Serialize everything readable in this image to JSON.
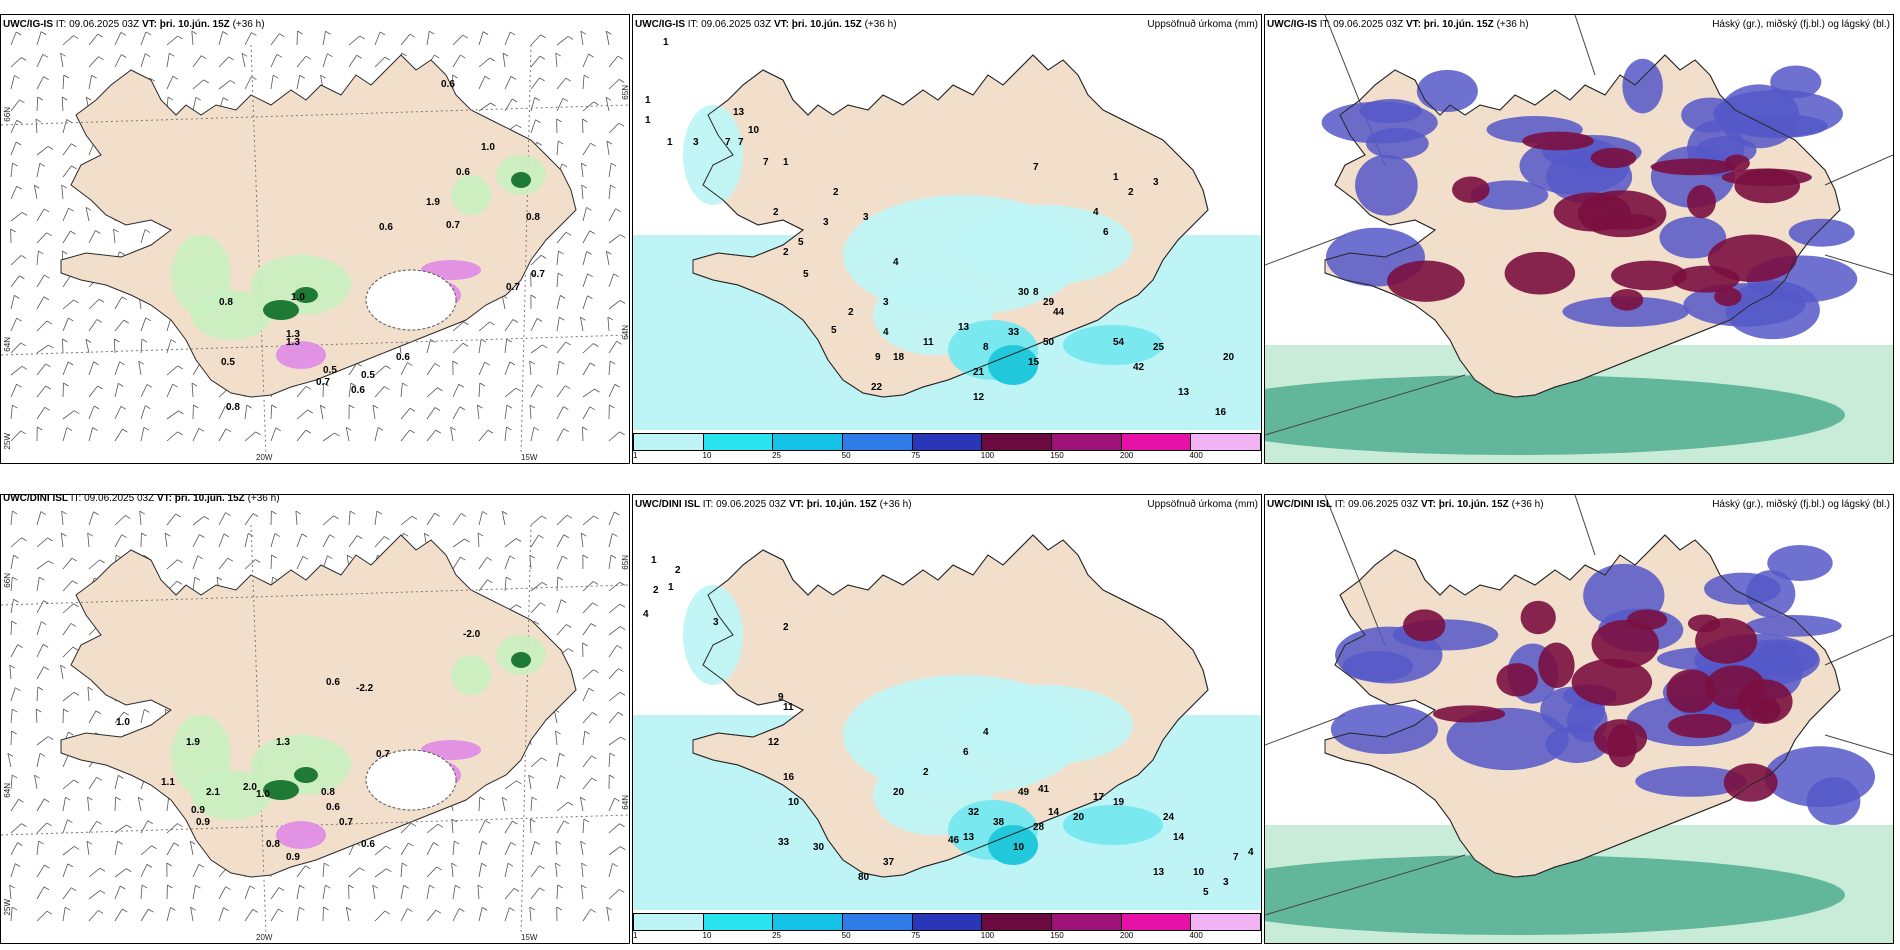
{
  "colors": {
    "land": "#f2dfcb",
    "coast": "#2a2a2a",
    "green_light": "#c8efc0",
    "green_dark": "#1f7a35",
    "magenta": "#e08ae6",
    "precip_light": "#bff4f6",
    "precip_mid": "#7ae8ef",
    "precip_strong": "#22c8dc",
    "cloud_high": "#7a1040",
    "cloud_mid": "#5558c8",
    "cloud_low": "#57b091",
    "cloud_low_light": "#c9ecd9"
  },
  "panels": [
    {
      "id": "p1",
      "model": "UWC/IG-IS",
      "it_label": "IT:",
      "it_value": "09.06.2025 03Z",
      "vt_label": "VT:",
      "vt_value": "þri. 10.jún. 15Z",
      "lead": "(+36 h)",
      "axis_labels": [
        "66N",
        "64N",
        "25W",
        "20W",
        "15W",
        "65N",
        "64N"
      ],
      "values": [
        "0.6",
        "1.0",
        "0.6",
        "1.9",
        "0.6",
        "0.7",
        "0.8",
        "0.7",
        "0.7",
        "0.8",
        "0.5",
        "1.3",
        "0.8",
        "1.0",
        "1.3",
        "0.5",
        "0.6",
        "0.6",
        "0.7",
        "0.5"
      ]
    },
    {
      "id": "p2",
      "model": "UWC/IG-IS",
      "it_label": "IT:",
      "it_value": "09.06.2025 03Z",
      "vt_label": "VT:",
      "vt_value": "þri. 10.jún. 15Z",
      "lead": "(+36 h)",
      "right_title": "Uppsöfnuð úrkoma (mm)",
      "colorbar": {
        "ticks": [
          "1",
          "10",
          "25",
          "50",
          "75",
          "100",
          "150",
          "200",
          "400"
        ],
        "colors": [
          "#bff4f6",
          "#29e3ee",
          "#13c2e6",
          "#2f7be8",
          "#2a36b8",
          "#6a0a3f",
          "#9e1278",
          "#e612a8",
          "#f1b3f3"
        ]
      },
      "values": [
        "1",
        "1",
        "1",
        "1",
        "3",
        "7",
        "13",
        "7",
        "10",
        "7",
        "1",
        "2",
        "2",
        "5",
        "5",
        "3",
        "2",
        "3",
        "4",
        "3",
        "2",
        "5",
        "4",
        "9",
        "22",
        "18",
        "11",
        "13",
        "8",
        "21",
        "33",
        "29",
        "44",
        "50",
        "54",
        "42",
        "25",
        "20",
        "13",
        "16",
        "12",
        "15",
        "30",
        "8",
        "4",
        "6",
        "7",
        "1",
        "2",
        "3"
      ]
    },
    {
      "id": "p3",
      "model": "UWC/IG-IS",
      "it_label": "IT:",
      "it_value": "09.06.2025 03Z",
      "vt_label": "VT:",
      "vt_value": "þri. 10.jún. 15Z",
      "lead": "(+36 h)",
      "right_title": "Háský (gr.), miðský (fj.bl.) og lágský (bl.)"
    },
    {
      "id": "p4",
      "model": "UWC/DINI ISL",
      "it_label": "IT:",
      "it_value": "09.06.2025 03Z",
      "vt_label": "VT:",
      "vt_value": "þri. 10.jún. 15Z",
      "lead": "(+36 h)",
      "axis_labels": [
        "66N",
        "64N",
        "25W",
        "20W",
        "15W",
        "65N",
        "64N"
      ],
      "values": [
        "-2.0",
        "0.6",
        "-2.2",
        "1.0",
        "1.3",
        "1.9",
        "0.7",
        "1.1",
        "0.9",
        "2.1",
        "2.0",
        "1.0",
        "0.9",
        "0.6",
        "0.7",
        "0.8",
        "0.9",
        "0.6",
        "0.8"
      ]
    },
    {
      "id": "p5",
      "model": "UWC/DINI ISL",
      "it_label": "IT:",
      "it_value": "09.06.2025 03Z",
      "vt_label": "VT:",
      "vt_value": "þri. 10.jún. 15Z",
      "lead": "(+36 h)",
      "right_title": "Uppsöfnuð úrkoma (mm)",
      "colorbar": {
        "ticks": [
          "1",
          "10",
          "25",
          "50",
          "75",
          "100",
          "150",
          "200",
          "400"
        ],
        "colors": [
          "#bff4f6",
          "#29e3ee",
          "#13c2e6",
          "#2f7be8",
          "#2a36b8",
          "#6a0a3f",
          "#9e1278",
          "#e612a8",
          "#f1b3f3"
        ]
      },
      "values": [
        "1",
        "2",
        "2",
        "4",
        "1",
        "3",
        "2",
        "9",
        "11",
        "12",
        "16",
        "10",
        "33",
        "30",
        "80",
        "37",
        "46",
        "32",
        "38",
        "49",
        "41",
        "14",
        "13",
        "10",
        "28",
        "20",
        "17",
        "19",
        "24",
        "14",
        "13",
        "10",
        "5",
        "3",
        "7",
        "4",
        "20",
        "2",
        "6",
        "4"
      ]
    },
    {
      "id": "p6",
      "model": "UWC/DINI ISL",
      "it_label": "IT:",
      "it_value": "09.06.2025 03Z",
      "vt_label": "VT:",
      "vt_value": "þri. 10.jún. 15Z",
      "lead": "(+36 h)",
      "right_title": "Háský (gr.), miðský (fj.bl.) og lágský (bl.)"
    }
  ]
}
